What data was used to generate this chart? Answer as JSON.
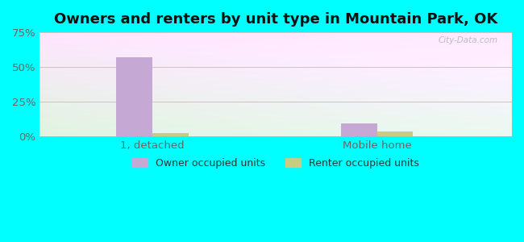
{
  "title": "Owners and renters by unit type in Mountain Park, OK",
  "categories": [
    "1, detached",
    "Mobile home"
  ],
  "owner_values": [
    57.0,
    9.5
  ],
  "renter_values": [
    2.5,
    3.2
  ],
  "owner_color": "#c5a8d4",
  "renter_color": "#c8cb82",
  "ylim": [
    0,
    75
  ],
  "yticks": [
    0,
    25,
    50,
    75
  ],
  "ytick_labels": [
    "0%",
    "25%",
    "50%",
    "75%"
  ],
  "bar_width": 0.32,
  "group_positions": [
    1.0,
    3.0
  ],
  "background_color": "#00ffff",
  "title_fontsize": 13,
  "tick_fontsize": 9.5,
  "legend_labels": [
    "Owner occupied units",
    "Renter occupied units"
  ],
  "watermark": "City-Data.com",
  "xlim": [
    0.0,
    4.2
  ]
}
